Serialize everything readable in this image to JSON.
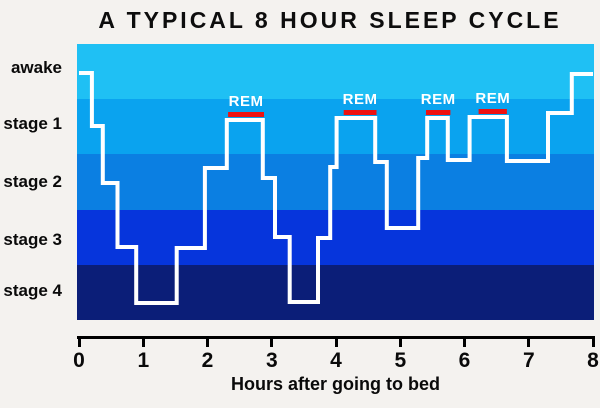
{
  "title": "A TYPICAL 8 HOUR SLEEP CYCLE",
  "colors": {
    "background": "#f4f2ef",
    "sleep_line": "#ffffff",
    "rem_bar": "#ee1111",
    "rem_label_text": "#ffffff",
    "axis": "#000000",
    "text": "#0a0a0a"
  },
  "chart_data": {
    "type": "line",
    "subtype": "hypnogram-step",
    "title": "A TYPICAL 8 HOUR SLEEP CYCLE",
    "xlabel": "Hours after going to bed",
    "x_axis": {
      "ticks": [
        "0",
        "1",
        "2",
        "3",
        "4",
        "5",
        "6",
        "7",
        "8"
      ],
      "range_hours": [
        0,
        8
      ],
      "grid": false
    },
    "y_axis": {
      "labels": [
        "awake",
        "stage 1",
        "stage 2",
        "stage 3",
        "stage 4"
      ]
    },
    "bands": [
      {
        "label": "awake",
        "color": "#1fc0f4"
      },
      {
        "label": "stage 1",
        "color": "#0aa3ef"
      },
      {
        "label": "stage 2",
        "color": "#0b7fe2"
      },
      {
        "label": "stage 3",
        "color": "#0635dc"
      },
      {
        "label": "stage 4",
        "color": "#0b1e78"
      }
    ],
    "rem_label": "REM",
    "rem_periods": [
      {
        "from": 2.32,
        "to": 2.88
      },
      {
        "from": 4.12,
        "to": 4.63
      },
      {
        "from": 5.4,
        "to": 5.78
      },
      {
        "from": 6.22,
        "to": 6.66
      }
    ],
    "segments": [
      {
        "from": 0.0,
        "to": 0.2,
        "stage": "awake"
      },
      {
        "from": 0.2,
        "to": 0.37,
        "stage": "stage 1"
      },
      {
        "from": 0.37,
        "to": 0.6,
        "stage": "stage 2"
      },
      {
        "from": 0.6,
        "to": 0.89,
        "stage": "stage 3"
      },
      {
        "from": 0.89,
        "to": 1.52,
        "stage": "stage 4"
      },
      {
        "from": 1.52,
        "to": 1.96,
        "stage": "stage 3"
      },
      {
        "from": 1.96,
        "to": 2.3,
        "stage": "stage 2"
      },
      {
        "from": 2.3,
        "to": 2.86,
        "stage": "stage 1 (REM)"
      },
      {
        "from": 2.86,
        "to": 3.05,
        "stage": "stage 2"
      },
      {
        "from": 3.05,
        "to": 3.28,
        "stage": "stage 3"
      },
      {
        "from": 3.28,
        "to": 3.72,
        "stage": "stage 4"
      },
      {
        "from": 3.72,
        "to": 3.91,
        "stage": "stage 3"
      },
      {
        "from": 3.91,
        "to": 4.01,
        "stage": "stage 2"
      },
      {
        "from": 4.01,
        "to": 4.61,
        "stage": "stage 1 (REM)"
      },
      {
        "from": 4.61,
        "to": 4.79,
        "stage": "stage 2"
      },
      {
        "from": 4.79,
        "to": 5.28,
        "stage": "stage 3"
      },
      {
        "from": 5.28,
        "to": 5.42,
        "stage": "stage 2"
      },
      {
        "from": 5.42,
        "to": 5.74,
        "stage": "stage 1 (REM)"
      },
      {
        "from": 5.74,
        "to": 6.08,
        "stage": "stage 2"
      },
      {
        "from": 6.08,
        "to": 6.66,
        "stage": "stage 1 (REM)"
      },
      {
        "from": 6.66,
        "to": 7.3,
        "stage": "stage 2"
      },
      {
        "from": 7.3,
        "to": 7.67,
        "stage": "stage 1"
      },
      {
        "from": 7.67,
        "to": 8.0,
        "stage": "awake"
      }
    ],
    "line_points": [
      [
        0.0,
        29
      ],
      [
        0.2,
        82
      ],
      [
        0.37,
        139
      ],
      [
        0.6,
        203
      ],
      [
        0.89,
        259
      ],
      [
        1.52,
        204
      ],
      [
        1.96,
        124
      ],
      [
        2.3,
        76
      ],
      [
        2.86,
        134
      ],
      [
        3.05,
        193
      ],
      [
        3.28,
        258
      ],
      [
        3.72,
        194
      ],
      [
        3.91,
        123
      ],
      [
        4.01,
        74
      ],
      [
        4.61,
        118
      ],
      [
        4.79,
        184
      ],
      [
        5.28,
        114
      ],
      [
        5.42,
        74
      ],
      [
        5.74,
        116
      ],
      [
        6.08,
        73
      ],
      [
        6.66,
        117
      ],
      [
        7.3,
        69
      ],
      [
        7.67,
        30
      ]
    ],
    "line_end_hour": 8.0
  }
}
